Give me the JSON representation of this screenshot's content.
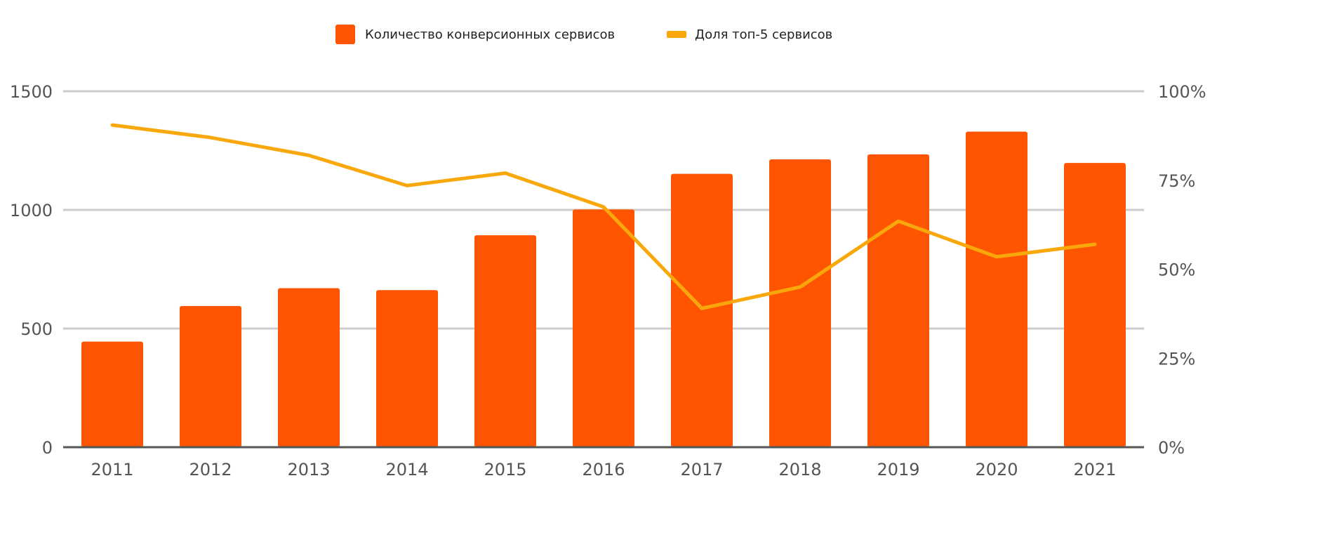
{
  "chart_data": {
    "type": "bar",
    "categories": [
      "2011",
      "2012",
      "2013",
      "2014",
      "2015",
      "2016",
      "2017",
      "2018",
      "2019",
      "2020",
      "2021"
    ],
    "series": [
      {
        "name": "Количество конверсионных сервисов",
        "type": "bar",
        "axis": "left",
        "color": "#FF5500",
        "values": [
          445,
          595,
          670,
          662,
          893,
          1002,
          1152,
          1213,
          1234,
          1330,
          1198
        ]
      },
      {
        "name": "Доля топ-5 сервисов",
        "type": "line",
        "axis": "right",
        "color": "#F9A80C",
        "values": [
          90.5,
          87,
          82,
          73.5,
          77,
          67.5,
          39,
          45,
          63.5,
          53.5,
          57
        ]
      }
    ],
    "y_left": {
      "ylim": [
        0,
        1500
      ],
      "ticks": [
        "0",
        "500",
        "1000",
        "1500"
      ]
    },
    "y_right": {
      "ylim": [
        0,
        100
      ],
      "ticks": [
        "0%",
        "25%",
        "50%",
        "75%",
        "100%"
      ]
    },
    "grid": true,
    "legend": "top-center"
  }
}
